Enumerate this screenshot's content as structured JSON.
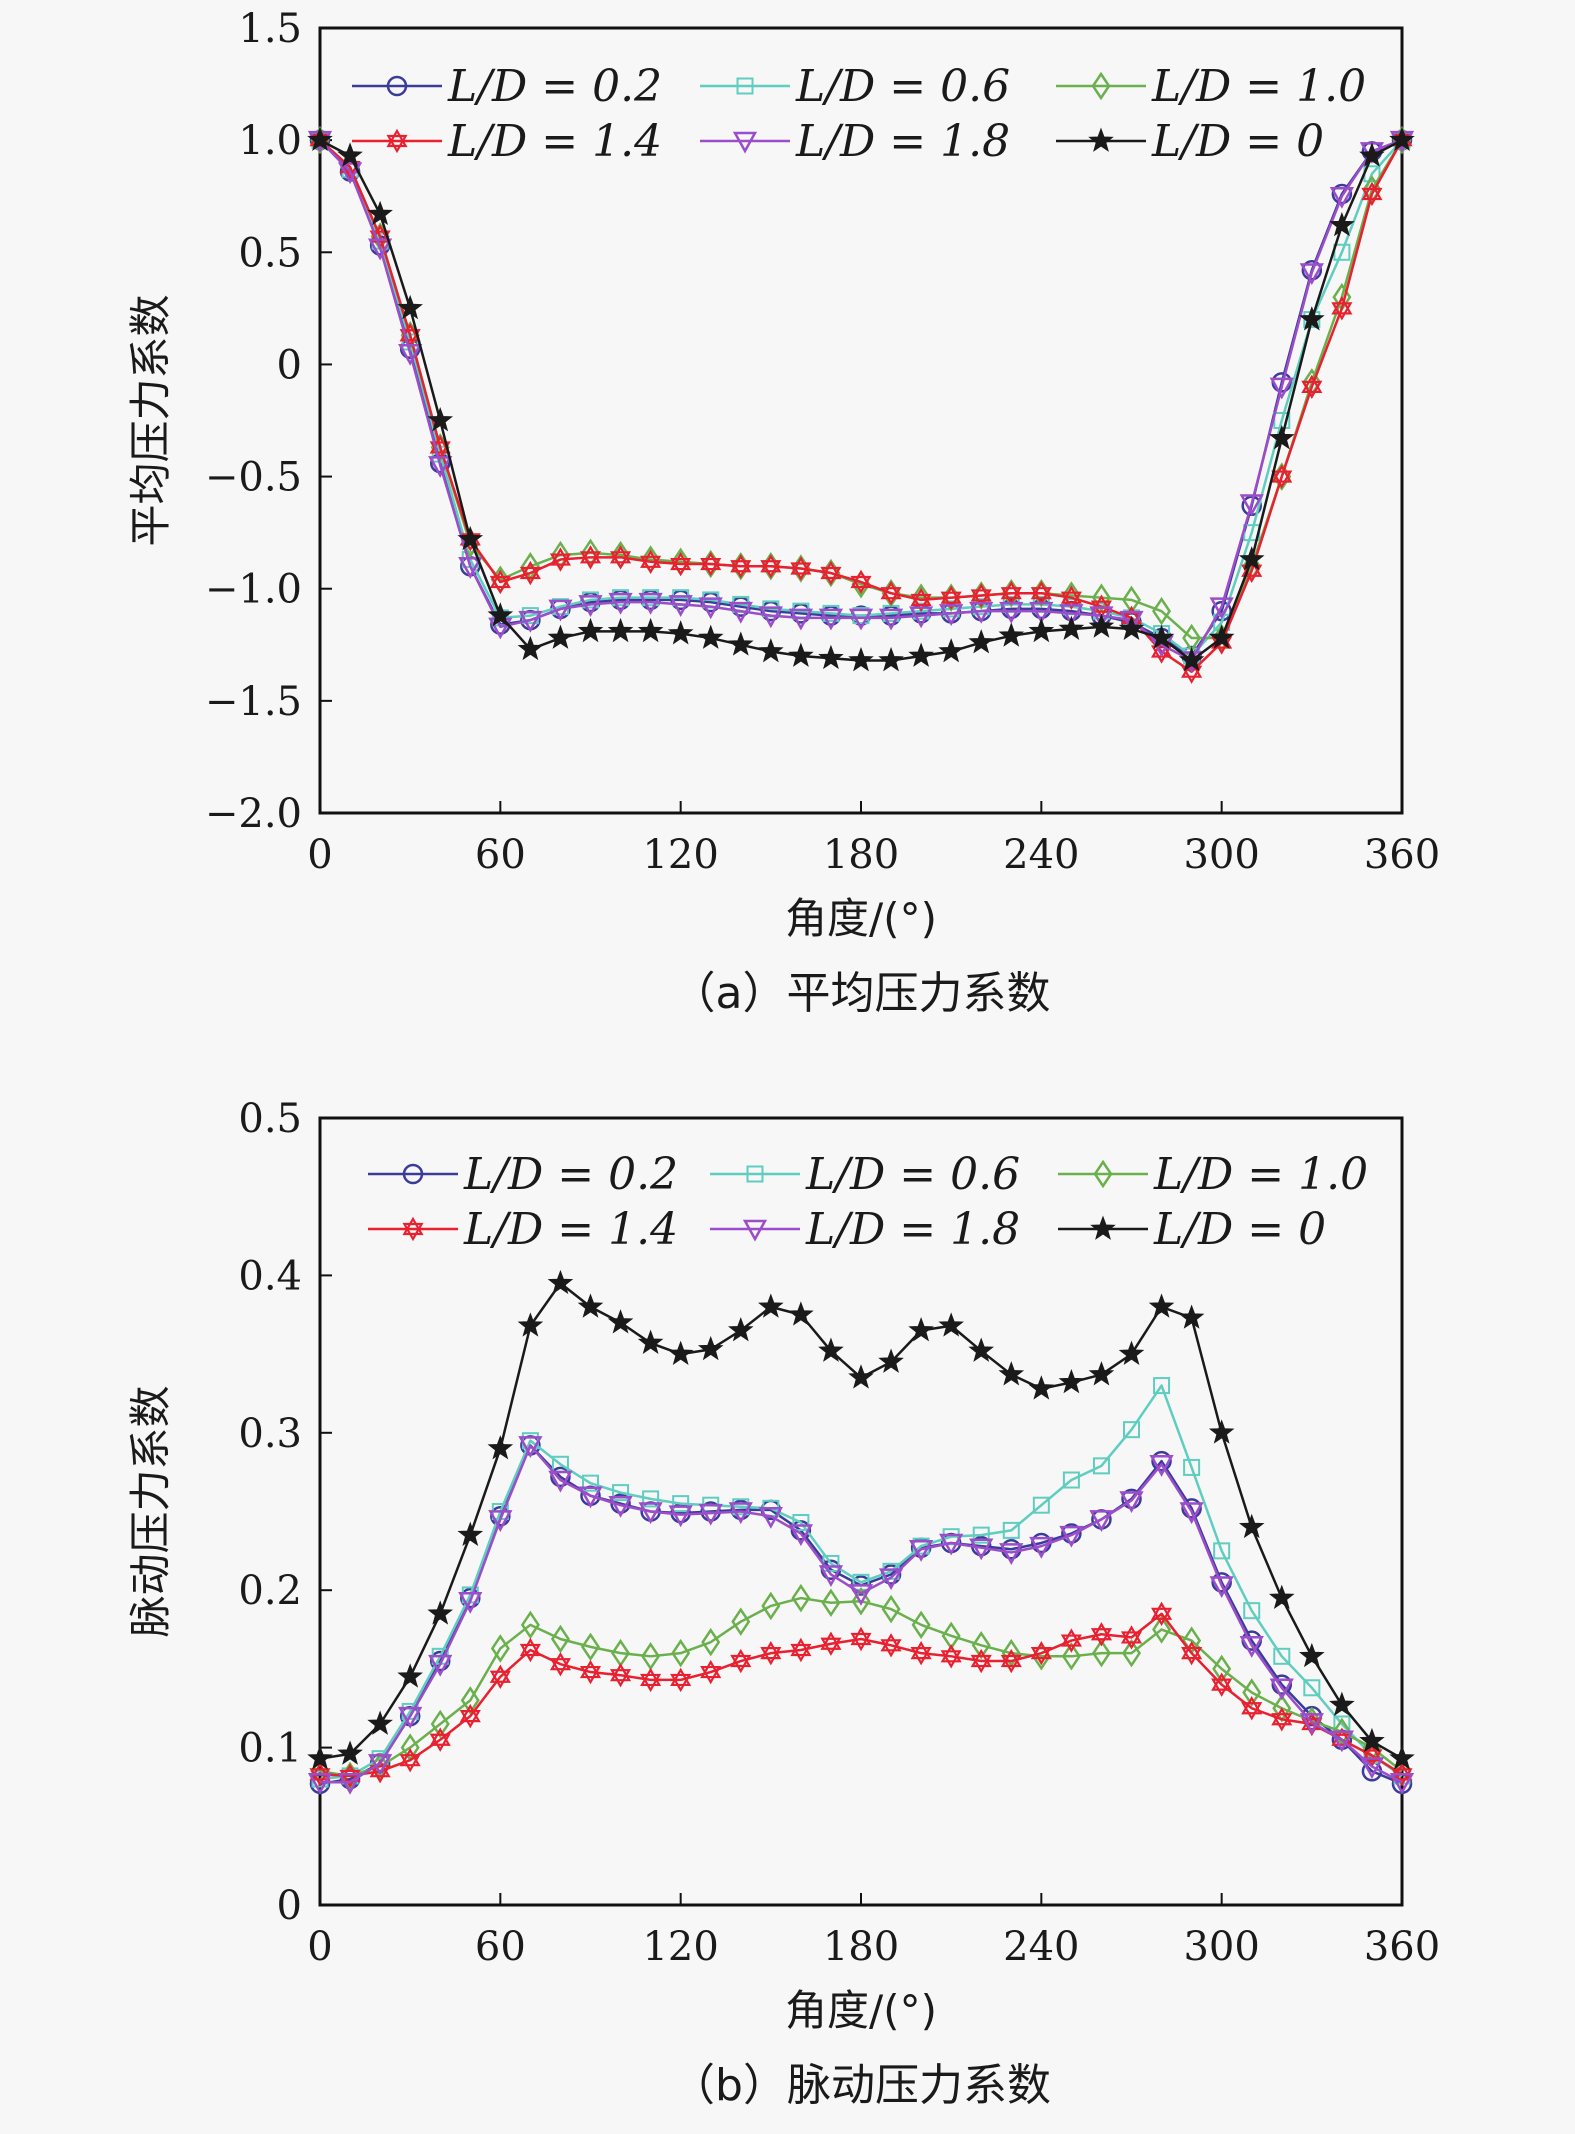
{
  "chart_data": [
    {
      "type": "line",
      "title": "",
      "caption": "（a）平均压力系数",
      "xlabel": "角度/(°)",
      "ylabel": "平均压力系数",
      "xlim": [
        0,
        360
      ],
      "ylim": [
        -2.0,
        1.5
      ],
      "xticks": [
        0,
        60,
        120,
        180,
        240,
        300,
        360
      ],
      "xtick_labels": [
        "0",
        "60",
        "120",
        "180",
        "240",
        "300",
        "360"
      ],
      "yticks": [
        1.5,
        1.0,
        0.5,
        0,
        -0.5,
        -1.0,
        -1.5,
        -2.0
      ],
      "ytick_labels": [
        "1.5",
        "1.0",
        "0.5",
        "0",
        "−0.5",
        "−1.0",
        "−1.5",
        "−2.0"
      ],
      "grid": false,
      "legend_position": "top",
      "x": [
        0,
        10,
        20,
        30,
        40,
        50,
        60,
        70,
        80,
        90,
        100,
        110,
        120,
        130,
        140,
        150,
        160,
        170,
        180,
        190,
        200,
        210,
        220,
        230,
        240,
        250,
        260,
        270,
        280,
        290,
        300,
        310,
        320,
        330,
        340,
        350,
        360
      ],
      "series": [
        {
          "name": "L/D = 0.2",
          "marker": "circle",
          "color": "#3b3b9a",
          "values": [
            1.0,
            0.86,
            0.53,
            0.07,
            -0.44,
            -0.9,
            -1.16,
            -1.14,
            -1.09,
            -1.06,
            -1.05,
            -1.05,
            -1.05,
            -1.06,
            -1.08,
            -1.1,
            -1.11,
            -1.12,
            -1.12,
            -1.12,
            -1.11,
            -1.11,
            -1.1,
            -1.09,
            -1.09,
            -1.1,
            -1.12,
            -1.15,
            -1.22,
            -1.3,
            -1.1,
            -0.63,
            -0.08,
            0.42,
            0.76,
            0.95,
            1.0
          ]
        },
        {
          "name": "L/D = 0.6",
          "marker": "square",
          "color": "#5fcdbf",
          "values": [
            1.0,
            0.87,
            0.55,
            0.1,
            -0.4,
            -0.87,
            -1.13,
            -1.12,
            -1.08,
            -1.05,
            -1.04,
            -1.04,
            -1.04,
            -1.05,
            -1.07,
            -1.09,
            -1.1,
            -1.11,
            -1.12,
            -1.11,
            -1.1,
            -1.09,
            -1.08,
            -1.07,
            -1.07,
            -1.08,
            -1.1,
            -1.13,
            -1.2,
            -1.3,
            -1.15,
            -0.75,
            -0.25,
            0.2,
            0.5,
            0.85,
            1.0
          ]
        },
        {
          "name": "L/D = 1.0",
          "marker": "diamond",
          "color": "#6ab04c",
          "values": [
            1.0,
            0.88,
            0.57,
            0.13,
            -0.37,
            -0.8,
            -0.96,
            -0.9,
            -0.85,
            -0.84,
            -0.85,
            -0.87,
            -0.88,
            -0.89,
            -0.9,
            -0.9,
            -0.91,
            -0.93,
            -0.98,
            -1.02,
            -1.04,
            -1.04,
            -1.03,
            -1.02,
            -1.02,
            -1.03,
            -1.04,
            -1.05,
            -1.1,
            -1.22,
            -1.22,
            -0.9,
            -0.5,
            -0.08,
            0.3,
            0.78,
            1.0
          ]
        },
        {
          "name": "L/D = 1.4",
          "marker": "hexagram",
          "color": "#e8202f",
          "values": [
            1.0,
            0.88,
            0.57,
            0.13,
            -0.37,
            -0.78,
            -0.97,
            -0.93,
            -0.87,
            -0.86,
            -0.86,
            -0.88,
            -0.89,
            -0.89,
            -0.9,
            -0.9,
            -0.91,
            -0.93,
            -0.97,
            -1.02,
            -1.05,
            -1.04,
            -1.03,
            -1.02,
            -1.02,
            -1.04,
            -1.08,
            -1.13,
            -1.28,
            -1.37,
            -1.24,
            -0.92,
            -0.5,
            -0.1,
            0.25,
            0.76,
            1.0
          ]
        },
        {
          "name": "L/D = 1.8",
          "marker": "triangle-down",
          "color": "#9b4dca",
          "values": [
            1.0,
            0.86,
            0.52,
            0.05,
            -0.45,
            -0.9,
            -1.17,
            -1.14,
            -1.09,
            -1.07,
            -1.06,
            -1.06,
            -1.07,
            -1.08,
            -1.1,
            -1.12,
            -1.13,
            -1.13,
            -1.13,
            -1.13,
            -1.12,
            -1.11,
            -1.1,
            -1.1,
            -1.1,
            -1.11,
            -1.12,
            -1.14,
            -1.25,
            -1.32,
            -1.08,
            -0.62,
            -0.1,
            0.41,
            0.75,
            0.95,
            1.0
          ]
        },
        {
          "name": "L/D = 0",
          "marker": "star",
          "color": "#1a1a1a",
          "values": [
            1.0,
            0.93,
            0.67,
            0.25,
            -0.25,
            -0.78,
            -1.12,
            -1.27,
            -1.22,
            -1.19,
            -1.19,
            -1.19,
            -1.2,
            -1.22,
            -1.25,
            -1.28,
            -1.3,
            -1.31,
            -1.32,
            -1.32,
            -1.3,
            -1.28,
            -1.24,
            -1.21,
            -1.19,
            -1.18,
            -1.17,
            -1.18,
            -1.22,
            -1.32,
            -1.22,
            -0.87,
            -0.33,
            0.2,
            0.62,
            0.93,
            1.0
          ]
        }
      ]
    },
    {
      "type": "line",
      "title": "",
      "caption": "（b）脉动压力系数",
      "xlabel": "角度/(°)",
      "ylabel": "脉动压力系数",
      "xlim": [
        0,
        360
      ],
      "ylim": [
        0,
        0.5
      ],
      "xticks": [
        0,
        60,
        120,
        180,
        240,
        300,
        360
      ],
      "xtick_labels": [
        "0",
        "60",
        "120",
        "180",
        "240",
        "300",
        "360"
      ],
      "yticks": [
        0.5,
        0.4,
        0.3,
        0.2,
        0.1,
        0
      ],
      "ytick_labels": [
        "0.5",
        "0.4",
        "0.3",
        "0.2",
        "0.1",
        "0"
      ],
      "grid": false,
      "legend_position": "top",
      "x": [
        0,
        10,
        20,
        30,
        40,
        50,
        60,
        70,
        80,
        90,
        100,
        110,
        120,
        130,
        140,
        150,
        160,
        170,
        180,
        190,
        200,
        210,
        220,
        230,
        240,
        250,
        260,
        270,
        280,
        290,
        300,
        310,
        320,
        330,
        340,
        350,
        360
      ],
      "series": [
        {
          "name": "L/D = 0.2",
          "marker": "circle",
          "color": "#3b3b9a",
          "values": [
            0.077,
            0.08,
            0.09,
            0.12,
            0.155,
            0.195,
            0.247,
            0.292,
            0.272,
            0.26,
            0.255,
            0.25,
            0.249,
            0.25,
            0.251,
            0.251,
            0.238,
            0.213,
            0.203,
            0.21,
            0.227,
            0.23,
            0.228,
            0.226,
            0.23,
            0.236,
            0.245,
            0.258,
            0.282,
            0.252,
            0.205,
            0.168,
            0.14,
            0.12,
            0.105,
            0.085,
            0.077
          ]
        },
        {
          "name": "L/D = 0.6",
          "marker": "square",
          "color": "#5fcdbf",
          "values": [
            0.08,
            0.082,
            0.093,
            0.123,
            0.158,
            0.197,
            0.25,
            0.295,
            0.28,
            0.268,
            0.262,
            0.258,
            0.255,
            0.254,
            0.253,
            0.252,
            0.243,
            0.217,
            0.205,
            0.212,
            0.228,
            0.234,
            0.235,
            0.238,
            0.254,
            0.27,
            0.279,
            0.302,
            0.33,
            0.278,
            0.225,
            0.187,
            0.158,
            0.138,
            0.115,
            0.095,
            0.082
          ]
        },
        {
          "name": "L/D = 1.0",
          "marker": "diamond",
          "color": "#6ab04c",
          "values": [
            0.085,
            0.082,
            0.088,
            0.1,
            0.115,
            0.13,
            0.163,
            0.178,
            0.169,
            0.164,
            0.16,
            0.158,
            0.16,
            0.167,
            0.18,
            0.19,
            0.195,
            0.192,
            0.193,
            0.188,
            0.178,
            0.171,
            0.165,
            0.16,
            0.158,
            0.158,
            0.16,
            0.16,
            0.175,
            0.168,
            0.15,
            0.135,
            0.125,
            0.117,
            0.11,
            0.1,
            0.085
          ]
        },
        {
          "name": "L/D = 1.4",
          "marker": "hexagram",
          "color": "#e8202f",
          "values": [
            0.083,
            0.082,
            0.085,
            0.092,
            0.105,
            0.12,
            0.145,
            0.162,
            0.153,
            0.148,
            0.146,
            0.143,
            0.143,
            0.148,
            0.155,
            0.16,
            0.162,
            0.166,
            0.169,
            0.165,
            0.16,
            0.158,
            0.155,
            0.155,
            0.16,
            0.168,
            0.172,
            0.17,
            0.185,
            0.16,
            0.14,
            0.125,
            0.118,
            0.115,
            0.105,
            0.095,
            0.083
          ]
        },
        {
          "name": "L/D = 1.8",
          "marker": "triangle-down",
          "color": "#9b4dca",
          "values": [
            0.078,
            0.078,
            0.09,
            0.12,
            0.153,
            0.193,
            0.245,
            0.292,
            0.27,
            0.26,
            0.254,
            0.25,
            0.248,
            0.249,
            0.25,
            0.247,
            0.236,
            0.21,
            0.198,
            0.208,
            0.226,
            0.23,
            0.227,
            0.224,
            0.228,
            0.235,
            0.245,
            0.257,
            0.28,
            0.25,
            0.203,
            0.165,
            0.138,
            0.116,
            0.105,
            0.088,
            0.078
          ]
        },
        {
          "name": "L/D = 0",
          "marker": "star",
          "color": "#1a1a1a",
          "values": [
            0.093,
            0.096,
            0.115,
            0.145,
            0.185,
            0.235,
            0.29,
            0.368,
            0.395,
            0.38,
            0.37,
            0.357,
            0.35,
            0.353,
            0.365,
            0.38,
            0.375,
            0.352,
            0.335,
            0.345,
            0.365,
            0.368,
            0.352,
            0.337,
            0.328,
            0.332,
            0.337,
            0.35,
            0.38,
            0.373,
            0.3,
            0.24,
            0.195,
            0.158,
            0.127,
            0.104,
            0.093
          ]
        }
      ]
    }
  ]
}
